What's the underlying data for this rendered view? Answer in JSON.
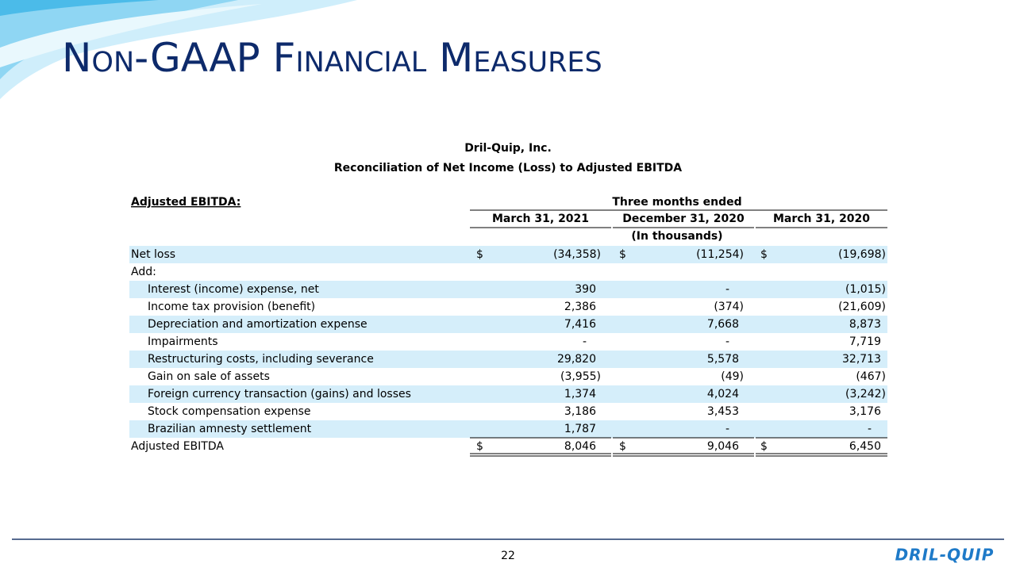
{
  "header": {
    "title": "Non-GAAP Financial Measures"
  },
  "table": {
    "company": "Dril-Quip, Inc.",
    "subtitle": "Reconciliation of Net Income (Loss) to Adjusted EBITDA",
    "section_label": "Adjusted EBITDA:",
    "period_header": "Three months ended",
    "columns": [
      "March 31, 2021",
      "December 31, 2020",
      "March 31, 2020"
    ],
    "units": "(In thousands)",
    "net_loss": {
      "label": "Net loss",
      "symbols": [
        "$",
        "$",
        "$"
      ],
      "cells": [
        "(34,358)",
        "(11,254)",
        "(19,698)"
      ]
    },
    "add_label": "Add:",
    "add_rows": [
      {
        "label": "Interest (income) expense, net",
        "cells": [
          "390",
          "-",
          "(1,015)"
        ]
      },
      {
        "label": "Income tax provision (benefit)",
        "cells": [
          "2,386",
          "(374)",
          "(21,609)"
        ]
      },
      {
        "label": "Depreciation and amortization expense",
        "cells": [
          "7,416",
          "7,668",
          "8,873"
        ]
      },
      {
        "label": "Impairments",
        "cells": [
          "-",
          "-",
          "7,719"
        ]
      },
      {
        "label": "Restructuring costs, including severance",
        "cells": [
          "29,820",
          "5,578",
          "32,713"
        ]
      },
      {
        "label": "Gain on sale of assets",
        "cells": [
          "(3,955)",
          "(49)",
          "(467)"
        ]
      },
      {
        "label": "Foreign currency transaction (gains) and losses",
        "cells": [
          "1,374",
          "4,024",
          "(3,242)"
        ]
      },
      {
        "label": "Stock compensation expense",
        "cells": [
          "3,186",
          "3,453",
          "3,176"
        ]
      },
      {
        "label": "Brazilian amnesty settlement",
        "cells": [
          "1,787",
          "-",
          "-"
        ]
      }
    ],
    "total": {
      "label": "Adjusted EBITDA",
      "symbols": [
        "$",
        "$",
        "$"
      ],
      "cells": [
        "8,046",
        "9,046",
        "6,450"
      ]
    }
  },
  "footer": {
    "page": "22",
    "logo": "DRIL-QUIP"
  }
}
